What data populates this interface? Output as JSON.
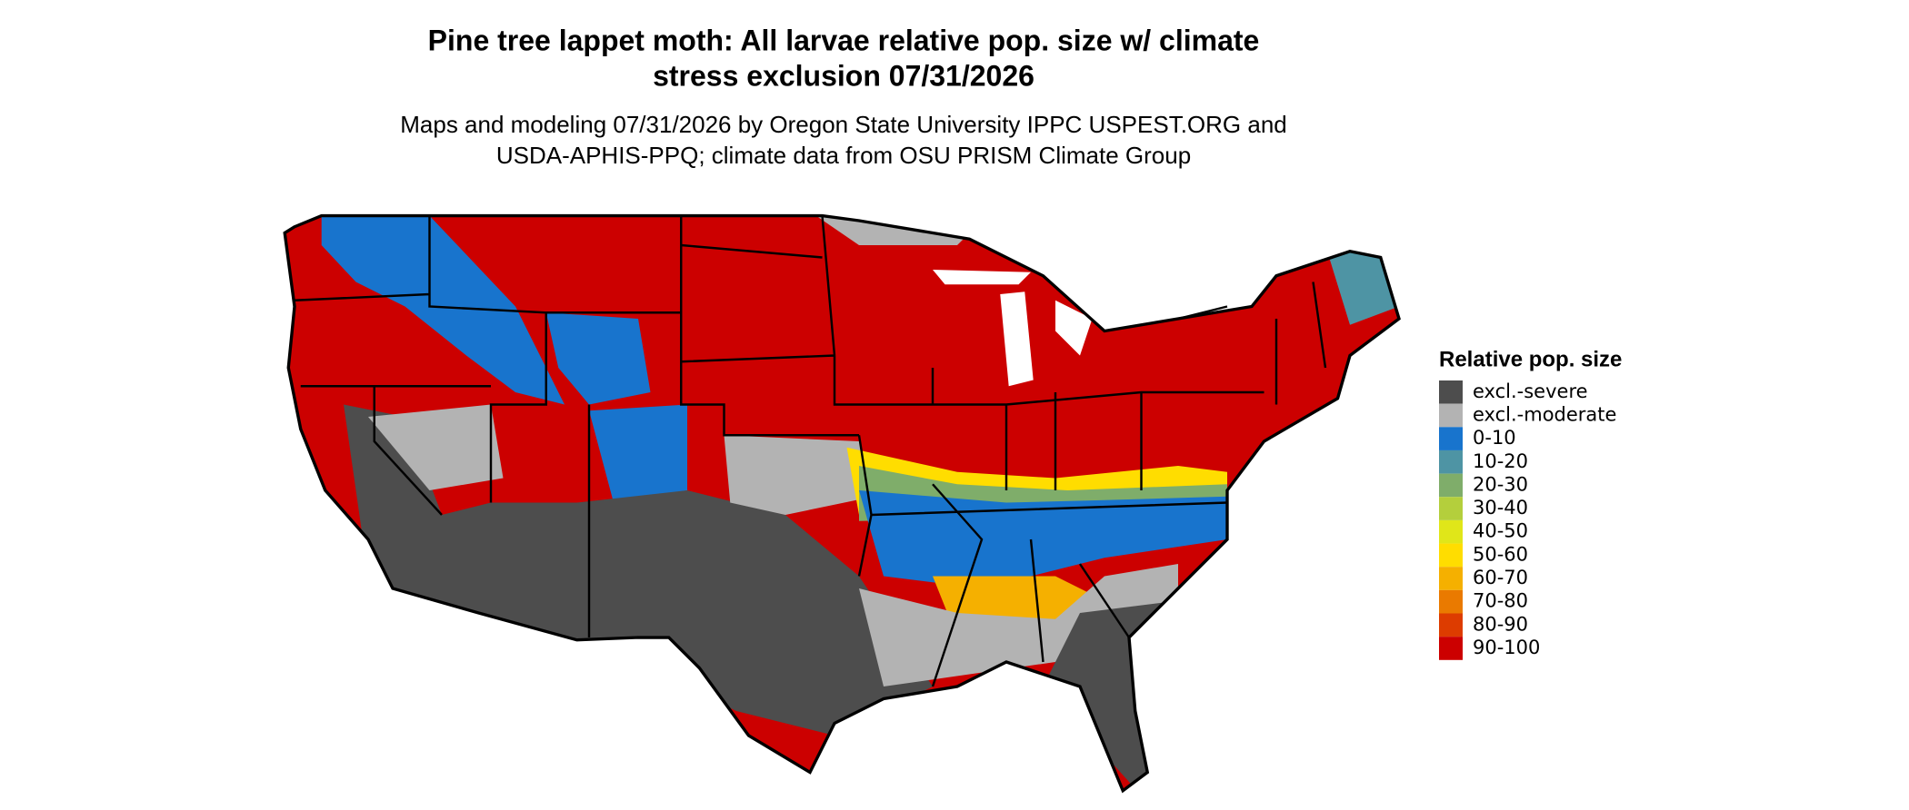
{
  "title_lines": [
    "Pine tree lappet moth: All larvae relative pop. size w/ climate",
    "stress exclusion 07/31/2026"
  ],
  "subtitle_lines": [
    "Maps and modeling 07/31/2026 by Oregon State University IPPC USPEST.ORG and",
    "USDA-APHIS-PPQ; climate data from OSU PRISM Climate Group"
  ],
  "legend": {
    "title": "Relative pop. size",
    "items": [
      {
        "label": "excl.-severe",
        "color": "#4d4d4d"
      },
      {
        "label": "excl.-moderate",
        "color": "#b3b3b3"
      },
      {
        "label": "0-10",
        "color": "#1874cd"
      },
      {
        "label": "10-20",
        "color": "#4e94a4"
      },
      {
        "label": "20-30",
        "color": "#7fad6a"
      },
      {
        "label": "30-40",
        "color": "#b4cf3c"
      },
      {
        "label": "40-50",
        "color": "#e0e619"
      },
      {
        "label": "50-60",
        "color": "#ffdd00"
      },
      {
        "label": "60-70",
        "color": "#f5b000"
      },
      {
        "label": "70-80",
        "color": "#ea7a00"
      },
      {
        "label": "80-90",
        "color": "#dd3c00"
      },
      {
        "label": "90-100",
        "color": "#cc0000"
      }
    ]
  }
}
